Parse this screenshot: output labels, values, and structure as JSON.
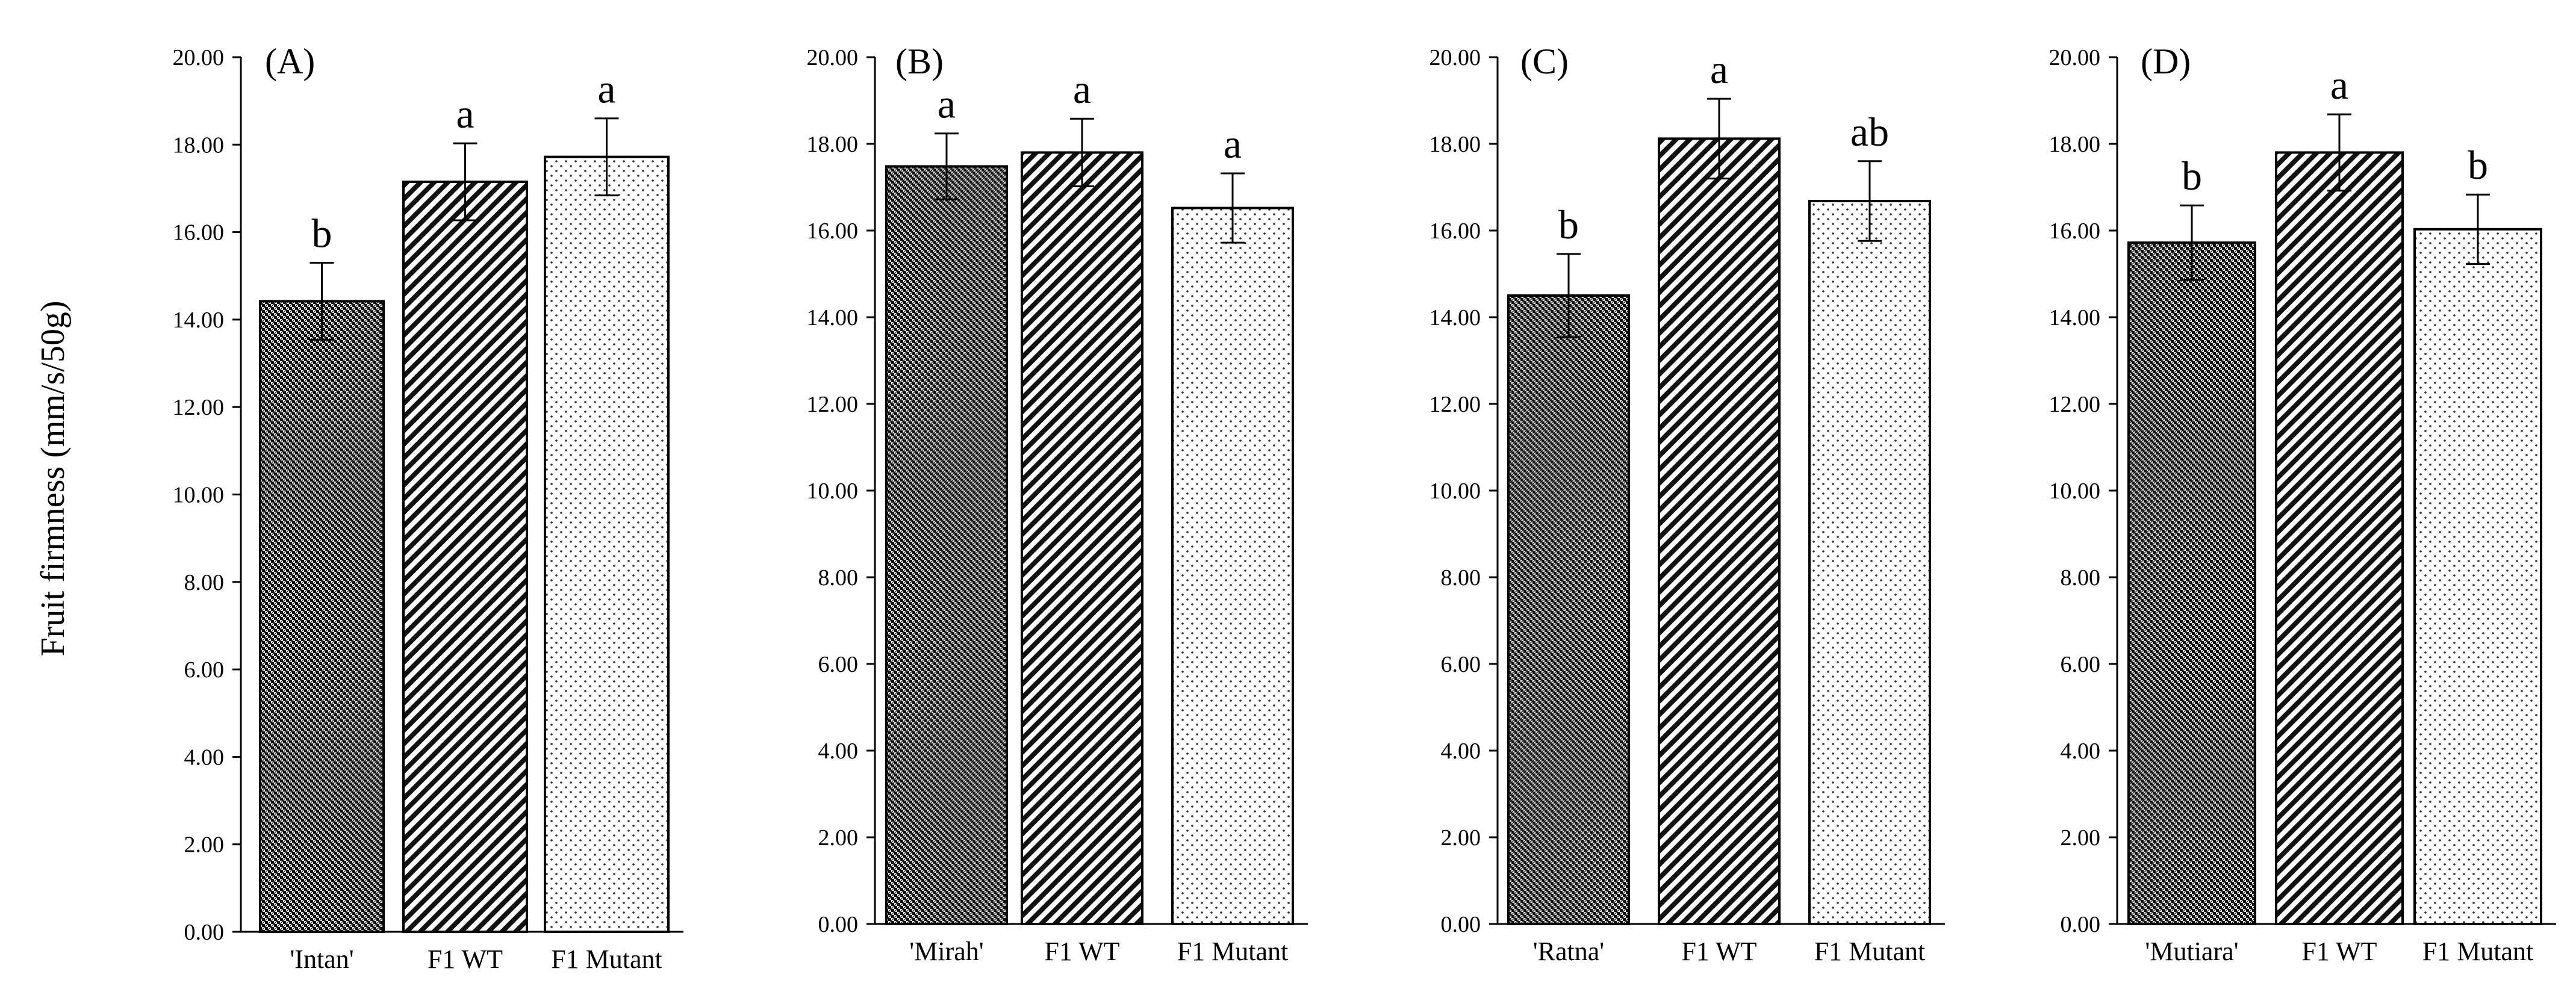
{
  "y_axis_title": "Fruit firmness (mm/s/50g)",
  "chart_data": [
    {
      "type": "bar",
      "panel": "(A)",
      "categories": [
        "'Intan'",
        "F1 WT",
        "F1 Mutant"
      ],
      "values": [
        14.42,
        17.15,
        17.72
      ],
      "errors": [
        0.88,
        0.88,
        0.88
      ],
      "significance": [
        "b",
        "a",
        "a"
      ],
      "patterns": [
        "dense",
        "diagonal",
        "dots"
      ],
      "ylim": [
        0,
        20
      ],
      "yticks": [
        "0.00",
        "2.00",
        "4.00",
        "6.00",
        "8.00",
        "10.00",
        "12.00",
        "14.00",
        "16.00",
        "18.00",
        "20.00"
      ],
      "ylabel": "Fruit firmness (mm/s/50g)",
      "xlabel": ""
    },
    {
      "type": "bar",
      "panel": "(B)",
      "categories": [
        "'Mirah'",
        "F1 WT",
        "F1 Mutant"
      ],
      "values": [
        17.48,
        17.8,
        16.52
      ],
      "errors": [
        0.76,
        0.78,
        0.8
      ],
      "significance": [
        "a",
        "a",
        "a"
      ],
      "patterns": [
        "dense",
        "diagonal",
        "dots"
      ],
      "ylim": [
        0,
        20
      ],
      "yticks": [
        "0.00",
        "2.00",
        "4.00",
        "6.00",
        "8.00",
        "10.00",
        "12.00",
        "14.00",
        "16.00",
        "18.00",
        "20.00"
      ],
      "ylabel": "",
      "xlabel": ""
    },
    {
      "type": "bar",
      "panel": "(C)",
      "categories": [
        "'Ratna'",
        "F1 WT",
        "F1 Mutant"
      ],
      "values": [
        14.5,
        18.12,
        16.68
      ],
      "errors": [
        0.96,
        0.92,
        0.92
      ],
      "significance": [
        "b",
        "a",
        "ab"
      ],
      "patterns": [
        "dense",
        "diagonal",
        "dots"
      ],
      "ylim": [
        0,
        20
      ],
      "yticks": [
        "0.00",
        "2.00",
        "4.00",
        "6.00",
        "8.00",
        "10.00",
        "12.00",
        "14.00",
        "16.00",
        "18.00",
        "20.00"
      ],
      "ylabel": "",
      "xlabel": ""
    },
    {
      "type": "bar",
      "panel": "(D)",
      "categories": [
        "'Mutiara'",
        "F1 WT",
        "F1 Mutant"
      ],
      "values": [
        15.72,
        17.8,
        16.03
      ],
      "errors": [
        0.86,
        0.88,
        0.8
      ],
      "significance": [
        "b",
        "a",
        "b"
      ],
      "patterns": [
        "dense",
        "diagonal",
        "dots"
      ],
      "ylim": [
        0,
        20
      ],
      "yticks": [
        "0.00",
        "2.00",
        "4.00",
        "6.00",
        "8.00",
        "10.00",
        "12.00",
        "14.00",
        "16.00",
        "18.00",
        "20.00"
      ],
      "ylabel": "",
      "xlabel": ""
    }
  ]
}
